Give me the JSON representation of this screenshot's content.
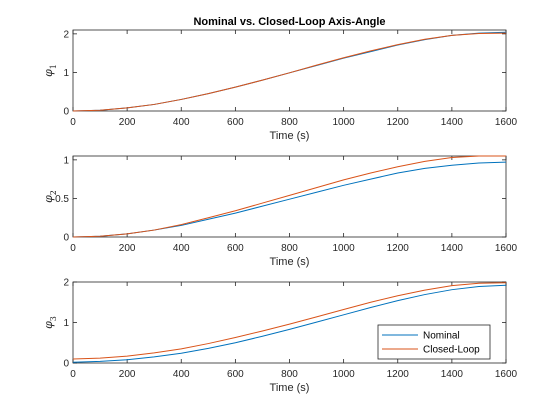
{
  "chart_data": [
    {
      "type": "line",
      "title": "Nominal vs. Closed-Loop Axis-Angle",
      "xlabel": "Time (s)",
      "ylabel": "φ",
      "ylabel_sub": "1",
      "xlim": [
        0,
        1600
      ],
      "ylim": [
        0,
        2.1
      ],
      "xticks": [
        0,
        200,
        400,
        600,
        800,
        1000,
        1200,
        1400,
        1600
      ],
      "yticks": [
        0,
        1,
        2
      ],
      "x": [
        0,
        100,
        200,
        300,
        400,
        500,
        600,
        700,
        800,
        900,
        1000,
        1100,
        1200,
        1300,
        1400,
        1500,
        1600
      ],
      "series": [
        {
          "name": "Nominal",
          "color": "#0072BD",
          "values": [
            0.0,
            0.02,
            0.08,
            0.17,
            0.3,
            0.45,
            0.62,
            0.8,
            0.99,
            1.18,
            1.37,
            1.54,
            1.71,
            1.85,
            1.96,
            2.02,
            2.04
          ]
        },
        {
          "name": "Closed-Loop",
          "color": "#D95319",
          "values": [
            0.0,
            0.02,
            0.08,
            0.17,
            0.3,
            0.45,
            0.62,
            0.8,
            0.99,
            1.19,
            1.38,
            1.56,
            1.72,
            1.86,
            1.96,
            2.01,
            2.02
          ]
        }
      ],
      "legend": false
    },
    {
      "type": "line",
      "title": "",
      "xlabel": "Time (s)",
      "ylabel": "φ",
      "ylabel_sub": "2",
      "xlim": [
        0,
        1600
      ],
      "ylim": [
        0,
        1.05
      ],
      "xticks": [
        0,
        200,
        400,
        600,
        800,
        1000,
        1200,
        1400,
        1600
      ],
      "yticks": [
        0,
        0.5,
        1
      ],
      "ytick_labels": [
        "0",
        "0.5",
        "1"
      ],
      "x": [
        0,
        100,
        200,
        300,
        400,
        500,
        600,
        700,
        800,
        900,
        1000,
        1100,
        1200,
        1300,
        1400,
        1500,
        1600
      ],
      "series": [
        {
          "name": "Nominal",
          "color": "#0072BD",
          "values": [
            0.0,
            0.01,
            0.04,
            0.09,
            0.15,
            0.23,
            0.31,
            0.4,
            0.49,
            0.58,
            0.67,
            0.75,
            0.83,
            0.89,
            0.93,
            0.96,
            0.97
          ]
        },
        {
          "name": "Closed-Loop",
          "color": "#D95319",
          "values": [
            0.0,
            0.01,
            0.04,
            0.09,
            0.16,
            0.25,
            0.34,
            0.44,
            0.54,
            0.64,
            0.74,
            0.83,
            0.91,
            0.98,
            1.03,
            1.05,
            1.05
          ]
        }
      ],
      "legend": false
    },
    {
      "type": "line",
      "title": "",
      "xlabel": "Time (s)",
      "ylabel": "φ",
      "ylabel_sub": "3",
      "xlim": [
        0,
        1600
      ],
      "ylim": [
        0,
        2.0
      ],
      "xticks": [
        0,
        200,
        400,
        600,
        800,
        1000,
        1200,
        1400,
        1600
      ],
      "yticks": [
        0,
        1,
        2
      ],
      "x": [
        0,
        100,
        200,
        300,
        400,
        500,
        600,
        700,
        800,
        900,
        1000,
        1100,
        1200,
        1300,
        1400,
        1500,
        1600
      ],
      "series": [
        {
          "name": "Nominal",
          "color": "#0072BD",
          "values": [
            0.02,
            0.04,
            0.08,
            0.15,
            0.24,
            0.36,
            0.5,
            0.66,
            0.83,
            1.01,
            1.19,
            1.37,
            1.54,
            1.69,
            1.81,
            1.89,
            1.92
          ]
        },
        {
          "name": "Closed-Loop",
          "color": "#D95319",
          "values": [
            0.1,
            0.12,
            0.17,
            0.25,
            0.35,
            0.48,
            0.63,
            0.79,
            0.96,
            1.14,
            1.32,
            1.5,
            1.66,
            1.8,
            1.91,
            1.97,
            1.98
          ]
        }
      ],
      "legend": true,
      "legend_position": "bottom-right"
    }
  ],
  "colors": {
    "nominal": "#0072BD",
    "closed_loop": "#D95319",
    "axes": "#262626"
  }
}
